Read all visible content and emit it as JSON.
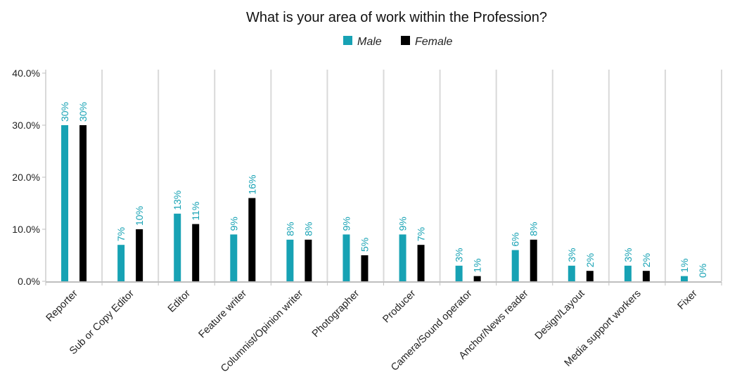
{
  "chart_data": {
    "type": "bar",
    "title": "What is your area of work within the Profession?",
    "categories": [
      "Reporter",
      "Sub or Copy Editor",
      "Editor",
      "Feature writer",
      "Columnist/Opinion writer",
      "Photographer",
      "Producer",
      "Camera/Sound operator",
      "Anchor/News reader",
      "Design/Layout",
      "Media support workers",
      "Fixer"
    ],
    "series": [
      {
        "name": "Male",
        "color": "#17a2b4",
        "values": [
          30,
          7,
          13,
          9,
          8,
          9,
          9,
          3,
          6,
          3,
          3,
          1
        ],
        "labels": [
          "30%",
          "7%",
          "13%",
          "9%",
          "8%",
          "9%",
          "9%",
          "3%",
          "6%",
          "3%",
          "3%",
          "1%"
        ]
      },
      {
        "name": "Female",
        "color": "#000000",
        "values": [
          30,
          10,
          11,
          16,
          8,
          5,
          7,
          1,
          8,
          2,
          2,
          0
        ],
        "labels": [
          "30%",
          "10%",
          "11%",
          "16%",
          "8%",
          "5%",
          "7%",
          "1%",
          "8%",
          "2%",
          "2%",
          "0%"
        ]
      }
    ],
    "yticks": [
      "0.0%",
      "10.0%",
      "20.0%",
      "30.0%",
      "40.0%"
    ],
    "ylim": [
      0,
      40
    ],
    "data_label_color": "#17a2b4",
    "gridline_color": "#d9d9d9",
    "legend_position": "top-center"
  }
}
